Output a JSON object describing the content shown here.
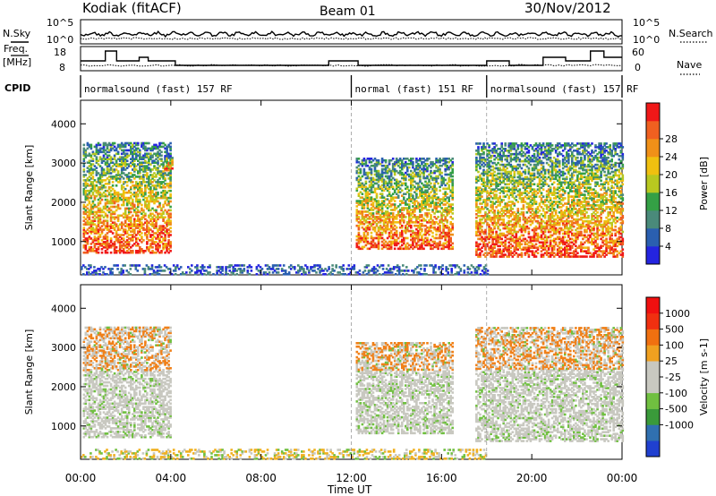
{
  "header": {
    "station": "Kodiak (fitACF)",
    "beam": "Beam 01",
    "date": "30/Nov/2012"
  },
  "small_panels": {
    "nsky_label": "N.Sky",
    "nsky_ticks": [
      "10^5",
      "10^0"
    ],
    "nsearch_label": "N.Search",
    "nsearch_ticks": [
      "10^5",
      "10^0"
    ],
    "freq_label_1": "Freq.",
    "freq_label_2": "[MHz]",
    "freq_ticks": [
      "18",
      "8"
    ],
    "nave_label": "Nave",
    "nave_ticks": [
      "60",
      "0"
    ],
    "cpid_label": "CPID",
    "cpid_segments": [
      {
        "label": "normalsound (fast) 157 RF",
        "start_h": 0,
        "end_h": 12
      },
      {
        "label": "normal (fast) 151 RF",
        "start_h": 12,
        "end_h": 18
      },
      {
        "label": "normalsound (fast) 157 RF",
        "start_h": 18,
        "end_h": 24
      }
    ]
  },
  "x_axis": {
    "label": "Time UT",
    "range_h": [
      0,
      24
    ],
    "ticks": [
      "00:00",
      "04:00",
      "08:00",
      "12:00",
      "16:00",
      "20:00",
      "00:00"
    ]
  },
  "chart_data": [
    {
      "type": "heatmap",
      "ylabel": "Slant Range [km]",
      "yticks": [
        "1000",
        "2000",
        "3000",
        "4000"
      ],
      "ylim": [
        150,
        4600
      ],
      "colorbar_label": "Power [dB]",
      "colorbar_ticks": [
        "4",
        "8",
        "12",
        "16",
        "20",
        "24",
        "28"
      ],
      "colorbar_colors": [
        "#2424e0",
        "#2a5fb0",
        "#4a8a7a",
        "#34a045",
        "#b8c820",
        "#f0c010",
        "#f09018",
        "#f06020",
        "#f01818"
      ],
      "regions": [
        {
          "t": [
            0.1,
            4.0
          ],
          "r": [
            700,
            3500
          ],
          "note": "backscatter"
        },
        {
          "t": [
            3.7,
            4.1
          ],
          "r": [
            2800,
            3200
          ],
          "note": "backscatter"
        },
        {
          "t": [
            12.2,
            16.5
          ],
          "r": [
            800,
            3100
          ],
          "note": "backscatter"
        },
        {
          "t": [
            17.5,
            24.0
          ],
          "r": [
            600,
            3500
          ],
          "note": "backscatter"
        },
        {
          "t": [
            0.0,
            18.0
          ],
          "r": [
            150,
            400
          ],
          "note": "near-range"
        }
      ]
    },
    {
      "type": "heatmap",
      "ylabel": "Slant Range [km]",
      "yticks": [
        "1000",
        "2000",
        "3000",
        "4000"
      ],
      "ylim": [
        150,
        4600
      ],
      "colorbar_label": "Velocity [m s-1]",
      "colorbar_ticks": [
        "1000",
        "500",
        "100",
        "25",
        "-25",
        "-100",
        "-500",
        "-1000"
      ],
      "colorbar_colors": [
        "#2040d0",
        "#3070b0",
        "#3a9a3a",
        "#70c040",
        "#c8c8c0",
        "#c8c8c0",
        "#f0a020",
        "#f07010",
        "#f03010",
        "#f01010"
      ],
      "regions": [
        {
          "t": [
            0.1,
            4.0
          ],
          "r": [
            700,
            3500
          ]
        },
        {
          "t": [
            12.2,
            16.5
          ],
          "r": [
            800,
            3100
          ]
        },
        {
          "t": [
            17.5,
            24.0
          ],
          "r": [
            600,
            3500
          ]
        },
        {
          "t": [
            0.0,
            18.0
          ],
          "r": [
            150,
            400
          ]
        }
      ]
    }
  ]
}
